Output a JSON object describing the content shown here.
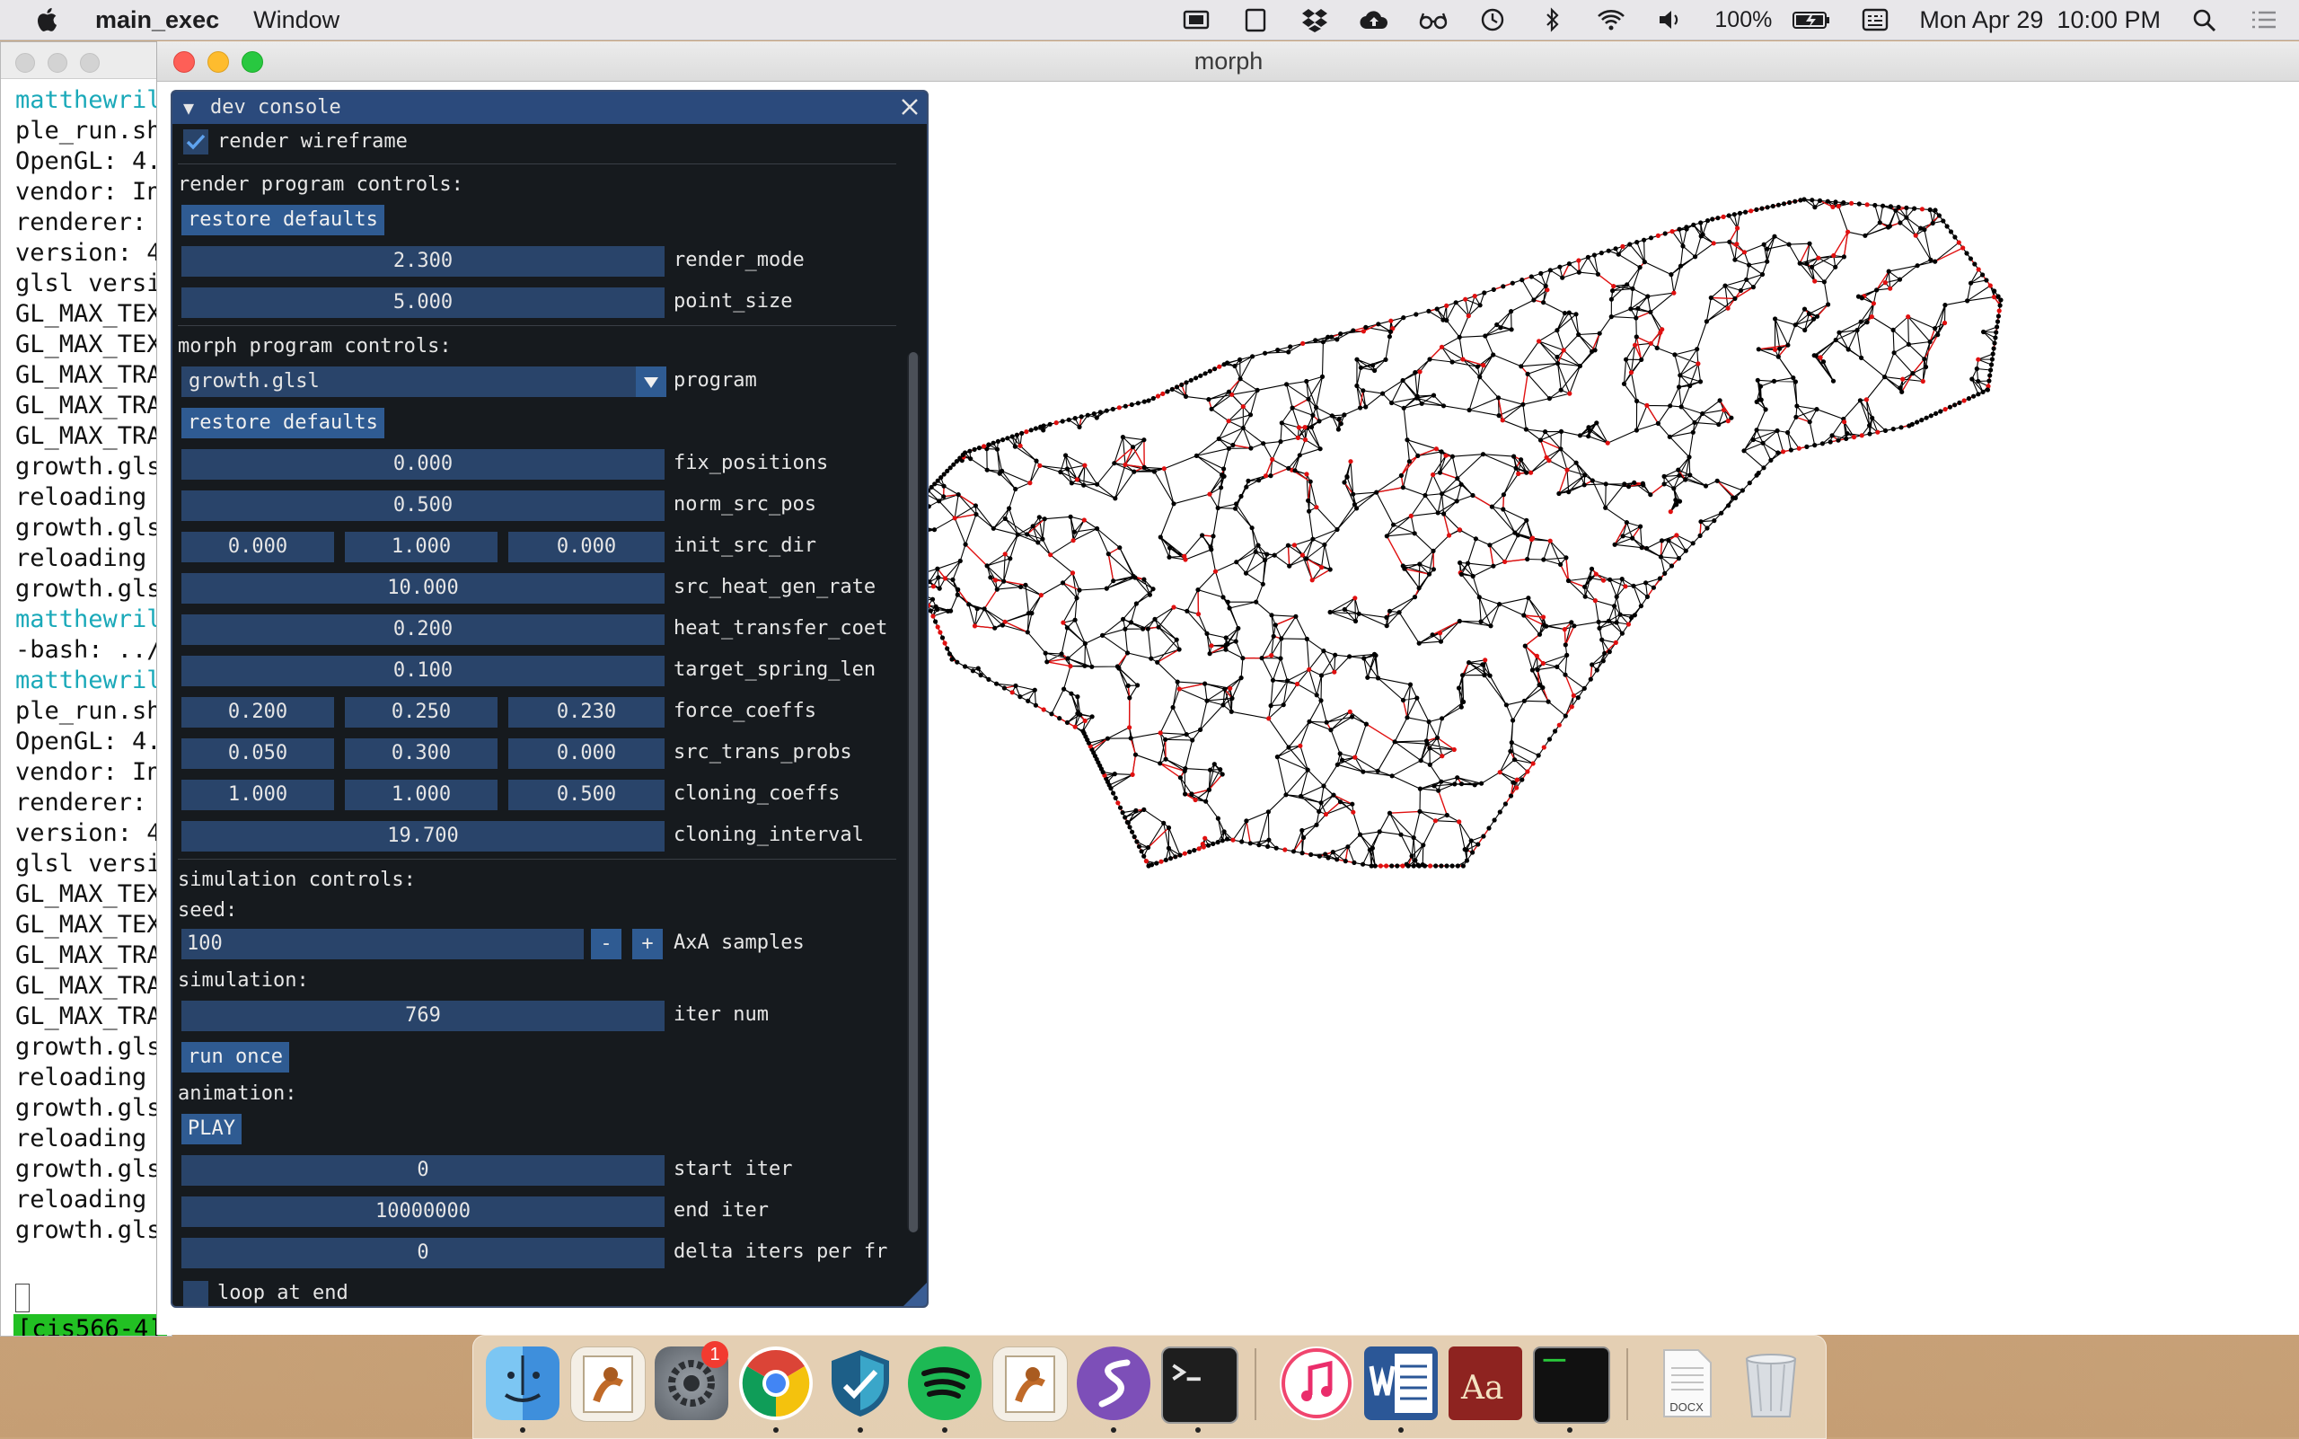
{
  "menubar": {
    "app_name": "main_exec",
    "menu_items": [
      "Window"
    ],
    "battery": "100%",
    "clock": "Mon Apr 29  10:00 PM",
    "status_icons": [
      "display-icon",
      "tablet-icon",
      "dropbox-icon",
      "cloud-upload-icon",
      "glasses-icon",
      "time-machine-icon",
      "bluetooth-icon",
      "wifi-icon",
      "volume-icon",
      "battery-icon",
      "input-menu-icon",
      "spotlight-search-icon",
      "notification-center-icon"
    ]
  },
  "terminal": {
    "lines": [
      {
        "text": "matthewril",
        "color": "cyan"
      },
      {
        "text": "ple_run.sh",
        "color": "default"
      },
      {
        "text": "OpenGL: 4.",
        "color": "default"
      },
      {
        "text": "vendor: In",
        "color": "default"
      },
      {
        "text": "renderer: ",
        "color": "default"
      },
      {
        "text": "version: 4",
        "color": "default"
      },
      {
        "text": "glsl versi",
        "color": "default"
      },
      {
        "text": "GL_MAX_TEX",
        "color": "default"
      },
      {
        "text": "GL_MAX_TEX",
        "color": "default"
      },
      {
        "text": "GL_MAX_TRA",
        "color": "default"
      },
      {
        "text": "GL_MAX_TRA",
        "color": "default"
      },
      {
        "text": "GL_MAX_TRA",
        "color": "default"
      },
      {
        "text": "growth.gls",
        "color": "default"
      },
      {
        "text": "reloading ",
        "color": "default"
      },
      {
        "text": "growth.gls",
        "color": "default"
      },
      {
        "text": "reloading ",
        "color": "default"
      },
      {
        "text": "growth.gls",
        "color": "default"
      },
      {
        "text": "matthewril",
        "color": "cyan"
      },
      {
        "text": "-bash: ../",
        "color": "default"
      },
      {
        "text": "matthewril",
        "color": "cyan"
      },
      {
        "text": "ple_run.sh",
        "color": "default"
      },
      {
        "text": "OpenGL: 4.",
        "color": "default"
      },
      {
        "text": "vendor: In",
        "color": "default"
      },
      {
        "text": "renderer: ",
        "color": "default"
      },
      {
        "text": "version: 4",
        "color": "default"
      },
      {
        "text": "glsl versi",
        "color": "default"
      },
      {
        "text": "GL_MAX_TEX",
        "color": "default"
      },
      {
        "text": "GL_MAX_TEX",
        "color": "default"
      },
      {
        "text": "GL_MAX_TRA",
        "color": "default"
      },
      {
        "text": "GL_MAX_TRA",
        "color": "default"
      },
      {
        "text": "GL_MAX_TRA",
        "color": "default"
      },
      {
        "text": "growth.gls",
        "color": "default"
      },
      {
        "text": "reloading ",
        "color": "default"
      },
      {
        "text": "growth.gls",
        "color": "default"
      },
      {
        "text": "reloading ",
        "color": "default"
      },
      {
        "text": "growth.gls",
        "color": "default"
      },
      {
        "text": "reloading ",
        "color": "default"
      },
      {
        "text": "growth.gls",
        "color": "default"
      }
    ],
    "prompt": "[cis566-4]"
  },
  "morph_window": {
    "title": "morph"
  },
  "console": {
    "title": "dev console",
    "render_wireframe": {
      "label": "render wireframe",
      "checked": true
    },
    "render_section": "render program controls:",
    "restore_defaults": "restore defaults",
    "render_mode": {
      "value": "2.300",
      "label": "render_mode"
    },
    "point_size": {
      "value": "5.000",
      "label": "point_size"
    },
    "morph_section": "morph program controls:",
    "program": {
      "value": "growth.glsl",
      "label": "program"
    },
    "fix_positions": {
      "value": "0.000",
      "label": "fix_positions"
    },
    "norm_src_pos": {
      "value": "0.500",
      "label": "norm_src_pos"
    },
    "init_src_dir": {
      "values": [
        "0.000",
        "1.000",
        "0.000"
      ],
      "label": "init_src_dir"
    },
    "src_heat_gen_rate": {
      "value": "10.000",
      "label": "src_heat_gen_rate"
    },
    "heat_transfer_coef": {
      "value": "0.200",
      "label": "heat_transfer_coet"
    },
    "target_spring_len": {
      "value": "0.100",
      "label": "target_spring_len"
    },
    "force_coeffs": {
      "values": [
        "0.200",
        "0.250",
        "0.230"
      ],
      "label": "force_coeffs"
    },
    "src_trans_probs": {
      "values": [
        "0.050",
        "0.300",
        "0.000"
      ],
      "label": "src_trans_probs"
    },
    "cloning_coeffs": {
      "values": [
        "1.000",
        "1.000",
        "0.500"
      ],
      "label": "cloning_coeffs"
    },
    "cloning_interval": {
      "value": "19.700",
      "label": "cloning_interval"
    },
    "simulation_section": "simulation controls:",
    "seed_label": "seed:",
    "seed": {
      "value": "100",
      "minus": "-",
      "plus": "+",
      "label": "AxA samples"
    },
    "simulation_label": "simulation:",
    "iter_num": {
      "value": "769",
      "label": "iter num"
    },
    "run_once": "run once",
    "animation_label": "animation:",
    "play": "PLAY",
    "start_iter": {
      "value": "0",
      "label": "start iter"
    },
    "end_iter": {
      "value": "10000000",
      "label": "end iter"
    },
    "delta_iters": {
      "value": "0",
      "label": "delta iters per fr"
    },
    "loop_at_end": {
      "label": "loop at end",
      "checked": false
    }
  },
  "dock": {
    "apps": [
      "finder",
      "preview",
      "system-preferences",
      "chrome",
      "sophos",
      "spotify",
      "preview-2",
      "emacs",
      "terminal",
      "music",
      "word",
      "dictionary",
      "exec",
      "docx-document",
      "trash"
    ],
    "badge": "1",
    "docx_label": "DOCX"
  },
  "colors": {
    "console_bg": "#161a1e",
    "console_title": "#2b4a7c",
    "field": "#29446a",
    "button": "#2f5b92",
    "terminal_cyan": "#1aa9b9",
    "prompt_green": "#22c023",
    "mesh_black": "#000000",
    "mesh_red": "#e01010"
  }
}
